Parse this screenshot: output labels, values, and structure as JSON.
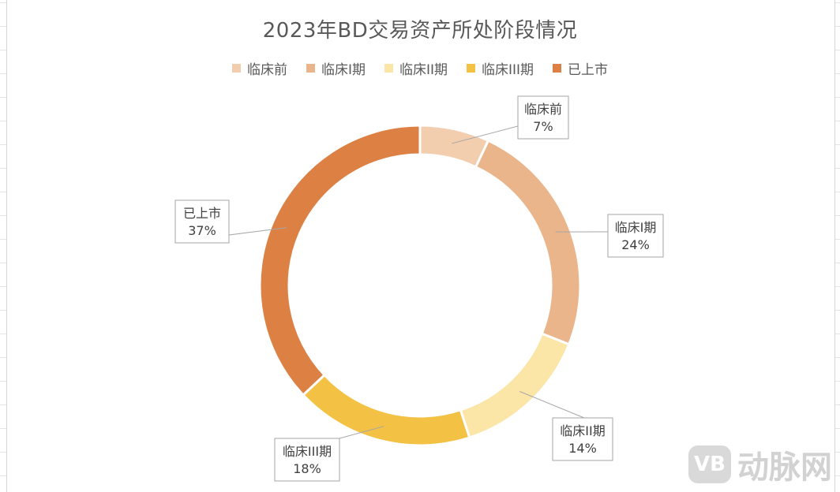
{
  "chart_data": {
    "type": "pie",
    "variant": "doughnut",
    "title": "2023年BD交易资产所处阶段情况",
    "legend_position": "top",
    "categories": [
      "临床前",
      "临床I期",
      "临床II期",
      "临床III期",
      "已上市"
    ],
    "values": [
      7,
      24,
      14,
      18,
      37
    ],
    "labels": [
      "7%",
      "24%",
      "14%",
      "18%",
      "37%"
    ],
    "colors": [
      "#F2CDAE",
      "#EAB58A",
      "#FBE6A8",
      "#F3C245",
      "#DC8044"
    ]
  },
  "watermark": {
    "logo_text": "VB",
    "text": "动脉网"
  }
}
